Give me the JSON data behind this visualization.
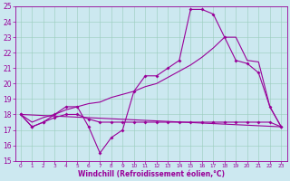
{
  "xlabel": "Windchill (Refroidissement éolien,°C)",
  "xlim": [
    -0.5,
    23.5
  ],
  "ylim": [
    15,
    25
  ],
  "yticks": [
    15,
    16,
    17,
    18,
    19,
    20,
    21,
    22,
    23,
    24,
    25
  ],
  "xticks": [
    0,
    1,
    2,
    3,
    4,
    5,
    6,
    7,
    8,
    9,
    10,
    11,
    12,
    13,
    14,
    15,
    16,
    17,
    18,
    19,
    20,
    21,
    22,
    23
  ],
  "bg_color": "#cce8f0",
  "line_color": "#990099",
  "grid_color": "#99ccbb",
  "line1_x": [
    0,
    1,
    2,
    3,
    4,
    5,
    6,
    7,
    8,
    9,
    10,
    11,
    12,
    13,
    14,
    15,
    16,
    17,
    18,
    19,
    20,
    21,
    22,
    23
  ],
  "line1_y": [
    18,
    17.2,
    17.5,
    17.8,
    18.0,
    18.0,
    17.7,
    17.5,
    17.5,
    17.5,
    17.5,
    17.5,
    17.5,
    17.5,
    17.5,
    17.5,
    17.5,
    17.5,
    17.5,
    17.5,
    17.5,
    17.5,
    17.5,
    17.2
  ],
  "line2_x": [
    0,
    1,
    2,
    3,
    4,
    5,
    6,
    7,
    8,
    9,
    10,
    11,
    12,
    13,
    14,
    15,
    16,
    17,
    18,
    19,
    20,
    21,
    22,
    23
  ],
  "line2_y": [
    18,
    17.2,
    17.5,
    18.0,
    18.5,
    18.5,
    17.2,
    15.5,
    16.5,
    17.0,
    19.5,
    20.5,
    20.5,
    21.0,
    21.5,
    24.8,
    24.8,
    24.5,
    23.0,
    21.5,
    21.3,
    20.7,
    18.5,
    17.2
  ],
  "line3_x": [
    0,
    23
  ],
  "line3_y": [
    18,
    17.2
  ],
  "line4_x": [
    0,
    1,
    2,
    3,
    4,
    5,
    6,
    7,
    8,
    9,
    10,
    11,
    12,
    13,
    14,
    15,
    16,
    17,
    18,
    19,
    20,
    21,
    22,
    23
  ],
  "line4_y": [
    18,
    17.5,
    17.8,
    18.0,
    18.3,
    18.5,
    18.7,
    18.8,
    19.1,
    19.3,
    19.5,
    19.8,
    20.0,
    20.4,
    20.8,
    21.2,
    21.7,
    22.3,
    23.0,
    23.0,
    21.5,
    21.4,
    18.5,
    17.2
  ]
}
